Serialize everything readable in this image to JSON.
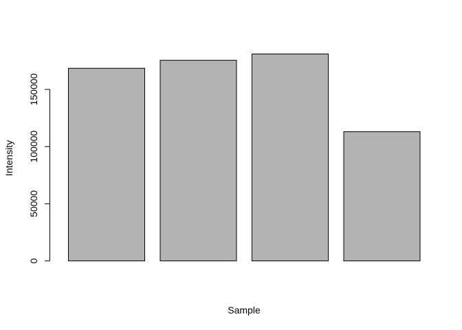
{
  "chart_data": {
    "type": "bar",
    "categories": [
      "",
      "",
      "",
      ""
    ],
    "values": [
      168500,
      175500,
      181000,
      113000
    ],
    "xlabel": "Sample",
    "ylabel": "Intensity",
    "ylim": [
      0,
      181000
    ],
    "yticks": [
      0,
      50000,
      100000,
      150000
    ],
    "yticklabels": [
      "0",
      "50000",
      "100000",
      "150000"
    ],
    "grid": false,
    "legend": "none",
    "bar_color": "#b3b3b3",
    "border_color": "#000000"
  }
}
